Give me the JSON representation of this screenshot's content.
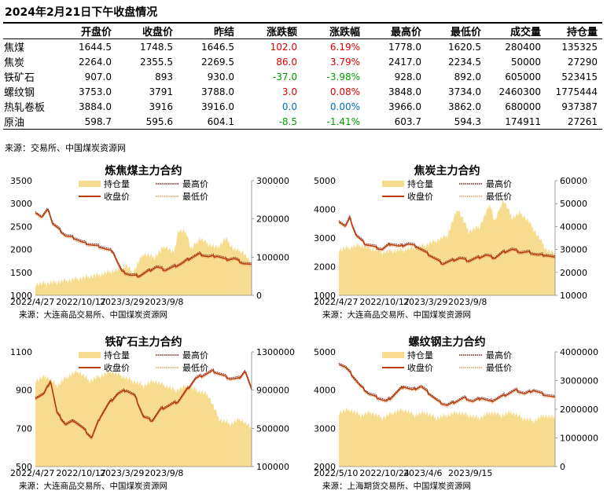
{
  "page_title": "2024年2月21日下午收盘情况",
  "table": {
    "columns": [
      "",
      "开盘价",
      "收盘价",
      "昨结",
      "涨跌额",
      "涨跌幅",
      "最高价",
      "最低价",
      "成交量",
      "持仓量"
    ],
    "rows": [
      {
        "name": "焦煤",
        "open": "1644.5",
        "close": "1748.5",
        "prev": "1646.5",
        "chg": "102.0",
        "pct": "6.19%",
        "high": "1778.0",
        "low": "1620.5",
        "volume": "280400",
        "oi": "135325",
        "dir": "up"
      },
      {
        "name": "焦炭",
        "open": "2264.0",
        "close": "2355.5",
        "prev": "2269.5",
        "chg": "86.0",
        "pct": "3.79%",
        "high": "2417.0",
        "low": "2234.5",
        "volume": "50000",
        "oi": "27290",
        "dir": "up"
      },
      {
        "name": "铁矿石",
        "open": "907.0",
        "close": "893",
        "prev": "930.0",
        "chg": "-37.0",
        "pct": "-3.98%",
        "high": "928.0",
        "low": "892.0",
        "volume": "605000",
        "oi": "523415",
        "dir": "down"
      },
      {
        "name": "螺纹钢",
        "open": "3753.0",
        "close": "3791",
        "prev": "3788.0",
        "chg": "3.0",
        "pct": "0.08%",
        "high": "3848.0",
        "low": "3734.0",
        "volume": "2460300",
        "oi": "1775444",
        "dir": "up"
      },
      {
        "name": "热轧卷板",
        "open": "3884.0",
        "close": "3916",
        "prev": "3916.0",
        "chg": "0.0",
        "pct": "0.00%",
        "high": "3966.0",
        "low": "3862.0",
        "volume": "680000",
        "oi": "937387",
        "dir": "flat"
      },
      {
        "name": "原油",
        "open": "598.7",
        "close": "595.6",
        "prev": "604.1",
        "chg": "-8.5",
        "pct": "-1.41%",
        "high": "603.7",
        "low": "594.3",
        "volume": "174911",
        "oi": "27261",
        "dir": "down"
      }
    ],
    "source": "来源：交易所、中国煤炭资源网"
  },
  "colors": {
    "open_interest": "#f7dc8f",
    "close": "#b83d0b",
    "high": "#7a1f14",
    "low": "#e0a060",
    "up": "#e00000",
    "down": "#00a000",
    "flat": "#0070c0"
  },
  "chart_data": [
    {
      "type": "area",
      "title": "炼焦煤主力合约",
      "legend": {
        "oi": "持仓量",
        "close": "收盘价",
        "high": "最高价",
        "low": "最低价"
      },
      "x_ticks": [
        "2022/4/27",
        "2022/10/17",
        "2023/3/29",
        "2023/9/8"
      ],
      "x_tick_pos": [
        0.0,
        0.205,
        0.4,
        0.6
      ],
      "y_left": {
        "ticks": [
          1000,
          1500,
          2000,
          2500,
          3000,
          3500
        ],
        "range": [
          1000,
          3500
        ]
      },
      "y_right": {
        "ticks": [
          0,
          100000,
          200000,
          300000
        ],
        "range": [
          0,
          300000
        ]
      },
      "series": [
        {
          "name": "收盘价",
          "axis": "left",
          "points": [
            [
              0,
              2820
            ],
            [
              0.03,
              2700
            ],
            [
              0.06,
              2880
            ],
            [
              0.08,
              2560
            ],
            [
              0.1,
              2480
            ],
            [
              0.14,
              2300
            ],
            [
              0.18,
              2250
            ],
            [
              0.22,
              2150
            ],
            [
              0.26,
              2100
            ],
            [
              0.3,
              2060
            ],
            [
              0.33,
              2000
            ],
            [
              0.36,
              1950
            ],
            [
              0.38,
              1720
            ],
            [
              0.4,
              1520
            ],
            [
              0.44,
              1440
            ],
            [
              0.48,
              1420
            ],
            [
              0.52,
              1520
            ],
            [
              0.56,
              1620
            ],
            [
              0.6,
              1550
            ],
            [
              0.64,
              1620
            ],
            [
              0.68,
              1700
            ],
            [
              0.72,
              1820
            ],
            [
              0.76,
              1900
            ],
            [
              0.8,
              1840
            ],
            [
              0.84,
              1860
            ],
            [
              0.88,
              1780
            ],
            [
              0.92,
              1800
            ],
            [
              0.96,
              1700
            ],
            [
              1.0,
              1660
            ]
          ]
        },
        {
          "name": "持仓量",
          "axis": "right",
          "points": [
            [
              0,
              30000
            ],
            [
              0.1,
              35000
            ],
            [
              0.2,
              45000
            ],
            [
              0.3,
              55000
            ],
            [
              0.36,
              65000
            ],
            [
              0.4,
              70000
            ],
            [
              0.42,
              80000
            ],
            [
              0.45,
              60000
            ],
            [
              0.5,
              110000
            ],
            [
              0.55,
              100000
            ],
            [
              0.6,
              130000
            ],
            [
              0.64,
              110000
            ],
            [
              0.66,
              170000
            ],
            [
              0.7,
              165000
            ],
            [
              0.72,
              120000
            ],
            [
              0.76,
              150000
            ],
            [
              0.8,
              135000
            ],
            [
              0.84,
              125000
            ],
            [
              0.88,
              150000
            ],
            [
              0.92,
              120000
            ],
            [
              0.96,
              115000
            ],
            [
              1.0,
              80000
            ]
          ]
        }
      ],
      "source": "来源：大连商品交易所、中国煤炭资源网"
    },
    {
      "type": "area",
      "title": "焦炭主力合约",
      "legend": {
        "oi": "持仓量",
        "close": "收盘价",
        "high": "最高价",
        "low": "最低价"
      },
      "x_ticks": [
        "2022/4/27",
        "2022/10/17",
        "2023/3/29",
        "2023/9/8"
      ],
      "x_tick_pos": [
        0.0,
        0.205,
        0.4,
        0.6
      ],
      "y_left": {
        "ticks": [
          1000,
          2000,
          3000,
          4000,
          5000
        ],
        "range": [
          1000,
          5000
        ]
      },
      "y_right": {
        "ticks": [
          10000,
          20000,
          30000,
          40000,
          50000,
          60000
        ],
        "range": [
          10000,
          60000
        ]
      },
      "series": [
        {
          "name": "收盘价",
          "axis": "left",
          "points": [
            [
              0,
              3600
            ],
            [
              0.03,
              3400
            ],
            [
              0.05,
              3700
            ],
            [
              0.08,
              3100
            ],
            [
              0.12,
              2800
            ],
            [
              0.16,
              2700
            ],
            [
              0.2,
              2600
            ],
            [
              0.24,
              2800
            ],
            [
              0.28,
              2700
            ],
            [
              0.32,
              2800
            ],
            [
              0.36,
              2700
            ],
            [
              0.4,
              2500
            ],
            [
              0.44,
              2300
            ],
            [
              0.48,
              2100
            ],
            [
              0.52,
              2200
            ],
            [
              0.56,
              2300
            ],
            [
              0.6,
              2200
            ],
            [
              0.64,
              2300
            ],
            [
              0.68,
              2400
            ],
            [
              0.72,
              2300
            ],
            [
              0.76,
              2500
            ],
            [
              0.8,
              2600
            ],
            [
              0.84,
              2500
            ],
            [
              0.88,
              2500
            ],
            [
              0.92,
              2400
            ],
            [
              0.96,
              2400
            ],
            [
              1.0,
              2300
            ]
          ]
        },
        {
          "name": "持仓量",
          "axis": "right",
          "points": [
            [
              0,
              30000
            ],
            [
              0.1,
              32000
            ],
            [
              0.2,
              29000
            ],
            [
              0.3,
              30000
            ],
            [
              0.4,
              32000
            ],
            [
              0.45,
              34000
            ],
            [
              0.5,
              36000
            ],
            [
              0.55,
              48000
            ],
            [
              0.6,
              38000
            ],
            [
              0.65,
              40000
            ],
            [
              0.7,
              50000
            ],
            [
              0.72,
              42000
            ],
            [
              0.76,
              52000
            ],
            [
              0.8,
              44000
            ],
            [
              0.84,
              46000
            ],
            [
              0.88,
              42000
            ],
            [
              0.92,
              36000
            ],
            [
              0.96,
              30000
            ],
            [
              1.0,
              28000
            ]
          ]
        }
      ],
      "source": "来源：大连商品交易所、中国煤炭资源网"
    },
    {
      "type": "area",
      "title": "铁矿石主力合约",
      "legend": {
        "oi": "持仓量",
        "close": "收盘价",
        "high": "最高价",
        "low": "最低价"
      },
      "x_ticks": [
        "2022/4/27",
        "2022/10/17",
        "2023/3/29",
        "2023/9/8"
      ],
      "x_tick_pos": [
        0.0,
        0.205,
        0.4,
        0.6
      ],
      "y_left": {
        "ticks": [
          500,
          700,
          900,
          1100
        ],
        "range": [
          500,
          1100
        ]
      },
      "y_right": {
        "ticks": [
          100000,
          500000,
          900000,
          1300000
        ],
        "range": [
          100000,
          1300000
        ]
      },
      "series": [
        {
          "name": "收盘价",
          "axis": "left",
          "points": [
            [
              0,
              860
            ],
            [
              0.04,
              880
            ],
            [
              0.07,
              950
            ],
            [
              0.1,
              780
            ],
            [
              0.14,
              720
            ],
            [
              0.18,
              740
            ],
            [
              0.22,
              700
            ],
            [
              0.26,
              650
            ],
            [
              0.3,
              760
            ],
            [
              0.34,
              830
            ],
            [
              0.38,
              880
            ],
            [
              0.42,
              900
            ],
            [
              0.46,
              870
            ],
            [
              0.5,
              760
            ],
            [
              0.54,
              740
            ],
            [
              0.58,
              800
            ],
            [
              0.62,
              820
            ],
            [
              0.66,
              840
            ],
            [
              0.7,
              900
            ],
            [
              0.74,
              960
            ],
            [
              0.78,
              980
            ],
            [
              0.82,
              1000
            ],
            [
              0.86,
              980
            ],
            [
              0.9,
              960
            ],
            [
              0.94,
              960
            ],
            [
              0.97,
              1000
            ],
            [
              1.0,
              900
            ]
          ]
        },
        {
          "name": "持仓量",
          "axis": "right",
          "points": [
            [
              0,
              1000000
            ],
            [
              0.05,
              1050000
            ],
            [
              0.1,
              950000
            ],
            [
              0.15,
              1050000
            ],
            [
              0.2,
              1100000
            ],
            [
              0.25,
              1000000
            ],
            [
              0.3,
              1050000
            ],
            [
              0.35,
              1100000
            ],
            [
              0.4,
              1050000
            ],
            [
              0.45,
              1000000
            ],
            [
              0.5,
              950000
            ],
            [
              0.55,
              1000000
            ],
            [
              0.6,
              950000
            ],
            [
              0.65,
              900000
            ],
            [
              0.7,
              950000
            ],
            [
              0.75,
              900000
            ],
            [
              0.8,
              850000
            ],
            [
              0.85,
              600000
            ],
            [
              0.9,
              550000
            ],
            [
              0.95,
              600000
            ],
            [
              1.0,
              500000
            ]
          ]
        }
      ],
      "source": "来源：大连商品交易所、中国煤炭资源网"
    },
    {
      "type": "area",
      "title": "螺纹钢主力合约",
      "legend": {
        "oi": "持仓量",
        "close": "收盘价",
        "high": "最高价",
        "low": "最低价"
      },
      "x_ticks": [
        "2022/5/10",
        "2022/10/24",
        "2023/4/6",
        "2023/9/15"
      ],
      "x_tick_pos": [
        0.0,
        0.205,
        0.4,
        0.6
      ],
      "y_left": {
        "ticks": [
          2000,
          3000,
          4000,
          5000
        ],
        "range": [
          2000,
          5000
        ]
      },
      "y_right": {
        "ticks": [
          0,
          1000000,
          2000000,
          3000000,
          4000000
        ],
        "range": [
          0,
          4000000
        ]
      },
      "series": [
        {
          "name": "收盘价",
          "axis": "left",
          "points": [
            [
              0,
              4700
            ],
            [
              0.03,
              4600
            ],
            [
              0.06,
              4400
            ],
            [
              0.1,
              4100
            ],
            [
              0.14,
              3900
            ],
            [
              0.18,
              3800
            ],
            [
              0.22,
              3700
            ],
            [
              0.26,
              3900
            ],
            [
              0.3,
              4100
            ],
            [
              0.34,
              4000
            ],
            [
              0.38,
              4100
            ],
            [
              0.42,
              3900
            ],
            [
              0.46,
              3700
            ],
            [
              0.5,
              3600
            ],
            [
              0.54,
              3700
            ],
            [
              0.58,
              3800
            ],
            [
              0.62,
              3700
            ],
            [
              0.66,
              3800
            ],
            [
              0.7,
              3700
            ],
            [
              0.74,
              3800
            ],
            [
              0.78,
              3900
            ],
            [
              0.82,
              4000
            ],
            [
              0.86,
              3900
            ],
            [
              0.9,
              4000
            ],
            [
              0.94,
              3900
            ],
            [
              1.0,
              3800
            ]
          ]
        },
        {
          "name": "持仓量",
          "axis": "right",
          "points": [
            [
              0,
              1900000
            ],
            [
              0.05,
              2000000
            ],
            [
              0.1,
              1800000
            ],
            [
              0.15,
              1900000
            ],
            [
              0.2,
              1700000
            ],
            [
              0.25,
              1900000
            ],
            [
              0.3,
              2000000
            ],
            [
              0.35,
              1800000
            ],
            [
              0.4,
              1900000
            ],
            [
              0.45,
              1700000
            ],
            [
              0.5,
              1800000
            ],
            [
              0.55,
              1900000
            ],
            [
              0.6,
              1800000
            ],
            [
              0.65,
              1700000
            ],
            [
              0.7,
              1900000
            ],
            [
              0.75,
              1800000
            ],
            [
              0.8,
              1900000
            ],
            [
              0.85,
              1700000
            ],
            [
              0.9,
              1600000
            ],
            [
              0.95,
              1800000
            ],
            [
              1.0,
              1700000
            ]
          ]
        }
      ],
      "source": "来源：上海期货交易所、中国煤炭资源网"
    }
  ]
}
